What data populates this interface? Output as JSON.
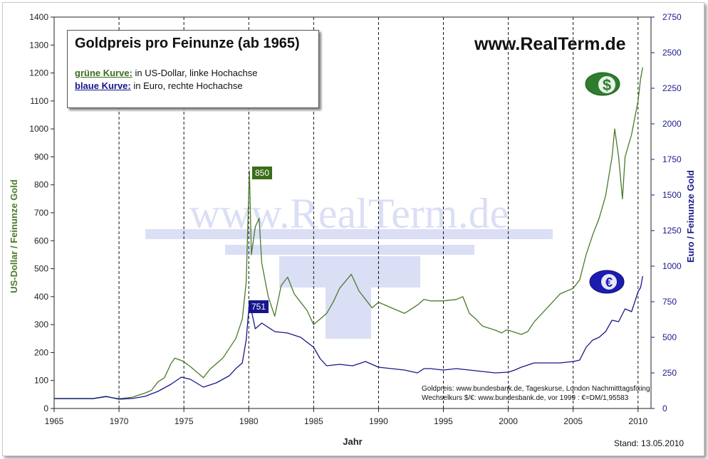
{
  "chart_data": {
    "type": "line",
    "title": "Goldpreis pro Feinunze (ab 1965)",
    "legend": [
      {
        "key": "grüne Kurve:",
        "text": "in US-Dollar, linke Hochachse",
        "color": "#3a6e1a"
      },
      {
        "key": "blaue Kurve:",
        "text": "in Euro, rechte Hochachse",
        "color": "#16168c"
      }
    ],
    "xlabel": "Jahr",
    "ylabel_left": "US-Dollar / Feinunze Gold",
    "ylabel_right": "Euro / Feinunze Gold",
    "xlim": [
      1965,
      2011
    ],
    "ylim_left": [
      0,
      1400
    ],
    "ylim_right": [
      0,
      2750
    ],
    "x_ticks": [
      "1965",
      "1970",
      "1975",
      "1980",
      "1985",
      "1990",
      "1995",
      "2000",
      "2005",
      "2010"
    ],
    "y_ticks_left": [
      "0",
      "100",
      "200",
      "300",
      "400",
      "500",
      "600",
      "700",
      "800",
      "900",
      "1000",
      "1100",
      "1200",
      "1300",
      "1400"
    ],
    "y_ticks_right": [
      "0",
      "250",
      "500",
      "750",
      "1000",
      "1250",
      "1500",
      "1750",
      "2000",
      "2250",
      "2500",
      "2750"
    ],
    "vertical_grid": "dashed at each x tick",
    "series": [
      {
        "name": "grüne Kurve",
        "axis": "left",
        "color": "#4a7a2a",
        "x": [
          1965,
          1968,
          1969,
          1970,
          1971,
          1972,
          1972.5,
          1973,
          1973.5,
          1974,
          1974.3,
          1974.9,
          1975.5,
          1976.5,
          1977,
          1978,
          1979,
          1979.5,
          1979.8,
          1980.05,
          1980.2,
          1980.5,
          1980.8,
          1981,
          1981.5,
          1982,
          1982.5,
          1983,
          1983.5,
          1984,
          1984.5,
          1985,
          1985.5,
          1986,
          1986.5,
          1987,
          1987.9,
          1988.5,
          1989,
          1989.5,
          1990,
          1990.5,
          1991,
          1992,
          1993,
          1993.5,
          1994,
          1995,
          1996,
          1996.5,
          1997,
          1997.5,
          1998,
          1999,
          1999.5,
          1999.8,
          2000,
          2001,
          2001.5,
          2002,
          2003,
          2004,
          2005,
          2005.5,
          2006,
          2006.5,
          2007,
          2007.5,
          2008,
          2008.2,
          2008.5,
          2008.8,
          2009,
          2009.5,
          2010,
          2010.2,
          2010.36
        ],
        "y": [
          35,
          35,
          42,
          35,
          40,
          55,
          65,
          95,
          110,
          160,
          180,
          170,
          150,
          110,
          140,
          180,
          250,
          320,
          450,
          850,
          550,
          650,
          680,
          520,
          400,
          330,
          440,
          470,
          410,
          380,
          350,
          300,
          320,
          340,
          380,
          430,
          480,
          420,
          390,
          360,
          380,
          370,
          360,
          340,
          370,
          390,
          385,
          385,
          390,
          400,
          340,
          320,
          295,
          280,
          270,
          280,
          280,
          265,
          275,
          310,
          360,
          410,
          430,
          460,
          550,
          620,
          680,
          760,
          900,
          1000,
          900,
          750,
          900,
          980,
          1100,
          1180,
          1220
        ]
      },
      {
        "name": "blaue Kurve",
        "axis": "right",
        "color": "#16168c",
        "x": [
          1965,
          1968,
          1969,
          1970,
          1971,
          1972,
          1973,
          1974,
          1974.8,
          1975.5,
          1976.5,
          1977.5,
          1978.5,
          1979,
          1979.5,
          1979.8,
          1980.05,
          1980.5,
          1981,
          1982,
          1983,
          1984,
          1985,
          1985.5,
          1986,
          1987,
          1988,
          1989,
          1990,
          1991,
          1992,
          1993,
          1993.5,
          1994,
          1995,
          1996,
          1997,
          1998,
          1999,
          2000,
          2000.5,
          2001,
          2002,
          2003,
          2004,
          2005,
          2005.5,
          2006,
          2006.5,
          2007,
          2007.5,
          2008,
          2008.5,
          2009,
          2009.5,
          2010,
          2010.2,
          2010.36
        ],
        "y": [
          70,
          70,
          85,
          65,
          70,
          85,
          120,
          170,
          220,
          205,
          150,
          180,
          230,
          280,
          320,
          480,
          751,
          560,
          600,
          540,
          530,
          500,
          430,
          350,
          300,
          310,
          300,
          330,
          290,
          280,
          270,
          250,
          280,
          280,
          270,
          280,
          270,
          260,
          250,
          255,
          270,
          290,
          320,
          320,
          320,
          330,
          340,
          430,
          480,
          500,
          540,
          620,
          610,
          700,
          680,
          820,
          850,
          930
        ]
      }
    ],
    "annotations": [
      {
        "text": "850",
        "x": 1980.05,
        "axis": "left",
        "value": 850,
        "color": "#3a6e1a"
      },
      {
        "text": "751",
        "x": 1980.05,
        "axis": "right",
        "value": 751,
        "color": "#16168c"
      }
    ]
  },
  "site_label": "www.RealTerm.de",
  "watermark": "www.RealTerm.de",
  "source_note": [
    "Goldpreis: www.bundesbank.de, Tageskurse, London Nachmitttagsfixing",
    "Wechselkurs $/€: www.bundesbank.de, vor 1999 : €=DM/1,95583"
  ],
  "stand_label": "Stand: 13.05.2010",
  "icons": {
    "dollar": "dollar-icon",
    "euro": "euro-icon"
  },
  "colors": {
    "green_series": "#4a7a2a",
    "blue_series": "#16168c",
    "grid": "#000000"
  }
}
